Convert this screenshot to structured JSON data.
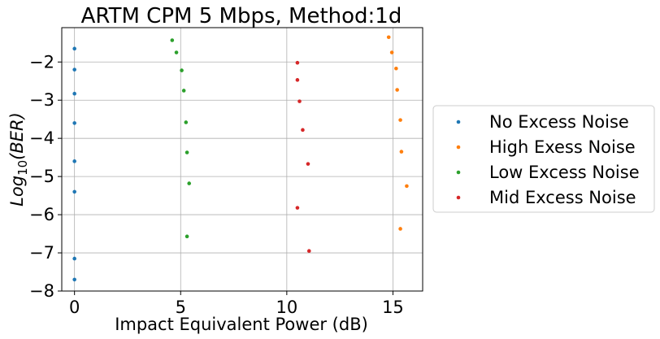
{
  "chart_data": {
    "type": "scatter",
    "title": "ARTM CPM 5 Mbps, Method:1d",
    "xlabel": "Impact Equivalent Power (dB)",
    "ylabel_prefix": "Log",
    "ylabel_sub": "10",
    "ylabel_suffix": "(BER)",
    "xlim": [
      -0.6,
      16.4
    ],
    "ylim": [
      -8.0,
      -1.1
    ],
    "xticks": [
      0,
      5,
      10,
      15
    ],
    "xtick_labels": [
      "0",
      "5",
      "10",
      "15"
    ],
    "yticks": [
      -8,
      -7,
      -6,
      -5,
      -4,
      -3,
      -2
    ],
    "ytick_labels": [
      "−8",
      "−7",
      "−6",
      "−5",
      "−4",
      "−3",
      "−2"
    ],
    "grid": true,
    "legend_position": "right-outside",
    "series": [
      {
        "name": "No Excess Noise",
        "color": "#1f77b4",
        "x": [
          0,
          0,
          0,
          0,
          0,
          0,
          0,
          0
        ],
        "y": [
          -1.65,
          -2.2,
          -2.83,
          -3.6,
          -4.6,
          -5.4,
          -7.15,
          -7.7
        ]
      },
      {
        "name": "High Exess Noise",
        "color": "#ff7f0e",
        "x": [
          14.8,
          14.95,
          15.15,
          15.2,
          15.35,
          15.4,
          15.65,
          15.35
        ],
        "y": [
          -1.35,
          -1.75,
          -2.17,
          -2.73,
          -3.52,
          -4.35,
          -5.25,
          -6.37
        ]
      },
      {
        "name": "Low Excess Noise",
        "color": "#2ca02c",
        "x": [
          4.6,
          4.8,
          5.05,
          5.15,
          5.25,
          5.3,
          5.4,
          5.3
        ],
        "y": [
          -1.43,
          -1.75,
          -2.22,
          -2.75,
          -3.58,
          -4.37,
          -5.18,
          -6.57
        ]
      },
      {
        "name": "Mid Excess Noise",
        "color": "#d62728",
        "x": [
          10.5,
          10.5,
          10.6,
          10.75,
          11.0,
          10.5,
          11.05
        ],
        "y": [
          -2.02,
          -2.47,
          -3.03,
          -3.78,
          -4.67,
          -5.82,
          -6.95
        ]
      }
    ]
  }
}
